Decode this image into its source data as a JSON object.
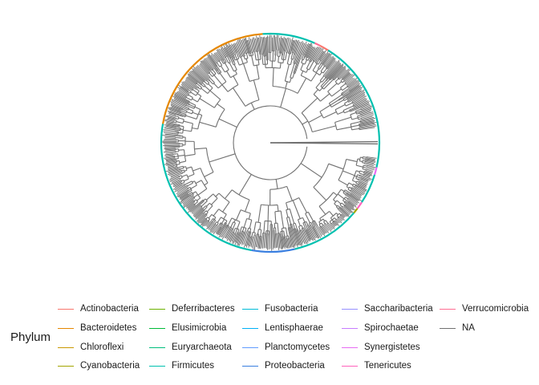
{
  "legend": {
    "title": "Phylum",
    "items": [
      {
        "label": "Actinobacteria",
        "color": "#F8766D"
      },
      {
        "label": "Bacteroidetes",
        "color": "#E58700"
      },
      {
        "label": "Chloroflexi",
        "color": "#C99800"
      },
      {
        "label": "Cyanobacteria",
        "color": "#A3A500"
      },
      {
        "label": "Deferribacteres",
        "color": "#6BB100"
      },
      {
        "label": "Elusimicrobia",
        "color": "#00BA38"
      },
      {
        "label": "Euryarchaeota",
        "color": "#00BF7D"
      },
      {
        "label": "Firmicutes",
        "color": "#00C0AF"
      },
      {
        "label": "Fusobacteria",
        "color": "#00BCD8"
      },
      {
        "label": "Lentisphaerae",
        "color": "#00B0F6"
      },
      {
        "label": "Planctomycetes",
        "color": "#619CFF"
      },
      {
        "label": "Proteobacteria",
        "color": "#3A7FE0"
      },
      {
        "label": "Saccharibacteria",
        "color": "#9590FF"
      },
      {
        "label": "Spirochaetae",
        "color": "#C77CFF"
      },
      {
        "label": "Synergistetes",
        "color": "#E76BF3"
      },
      {
        "label": "Tenericutes",
        "color": "#FF62BC"
      },
      {
        "label": "Verrucomicrobia",
        "color": "#FF6C91"
      },
      {
        "label": "NA",
        "color": "#707070"
      }
    ]
  },
  "tree": {
    "layout": "circular",
    "branch_color": "#707070",
    "tip_ring_segments": [
      {
        "phylum": "Firmicutes",
        "from_deg": 0,
        "to_deg": 58
      },
      {
        "phylum": "Actinobacteria",
        "from_deg": 58,
        "to_deg": 63
      },
      {
        "phylum": "Verrucomicrobia",
        "from_deg": 63,
        "to_deg": 66
      },
      {
        "phylum": "Firmicutes",
        "from_deg": 66,
        "to_deg": 94
      },
      {
        "phylum": "Bacteroidetes",
        "from_deg": 94,
        "to_deg": 170
      },
      {
        "phylum": "Firmicutes",
        "from_deg": 170,
        "to_deg": 260
      },
      {
        "phylum": "Proteobacteria",
        "from_deg": 260,
        "to_deg": 283
      },
      {
        "phylum": "Firmicutes",
        "from_deg": 283,
        "to_deg": 320
      },
      {
        "phylum": "Cyanobacteria",
        "from_deg": 320,
        "to_deg": 323
      },
      {
        "phylum": "Tenericutes",
        "from_deg": 323,
        "to_deg": 327
      },
      {
        "phylum": "Firmicutes",
        "from_deg": 327,
        "to_deg": 343
      },
      {
        "phylum": "Synergistetes",
        "from_deg": 343,
        "to_deg": 347
      },
      {
        "phylum": "Firmicutes",
        "from_deg": 347,
        "to_deg": 360
      }
    ]
  }
}
